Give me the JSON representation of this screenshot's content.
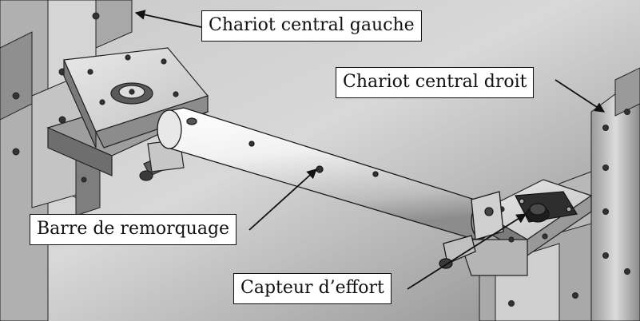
{
  "labels": {
    "chariot_gauche": "Chariot central gauche",
    "chariot_droit": "Chariot central droit",
    "barre": "Barre de remorquage",
    "capteur": "Capteur d’effort"
  },
  "colors": {
    "background_light": "#e6e6e6",
    "background_dark": "#7a7a7a",
    "metal_light": "#f2f2f2",
    "metal_mid": "#b9b9b9",
    "metal_dark": "#4a4a4a",
    "outline": "#1a1a1a"
  }
}
